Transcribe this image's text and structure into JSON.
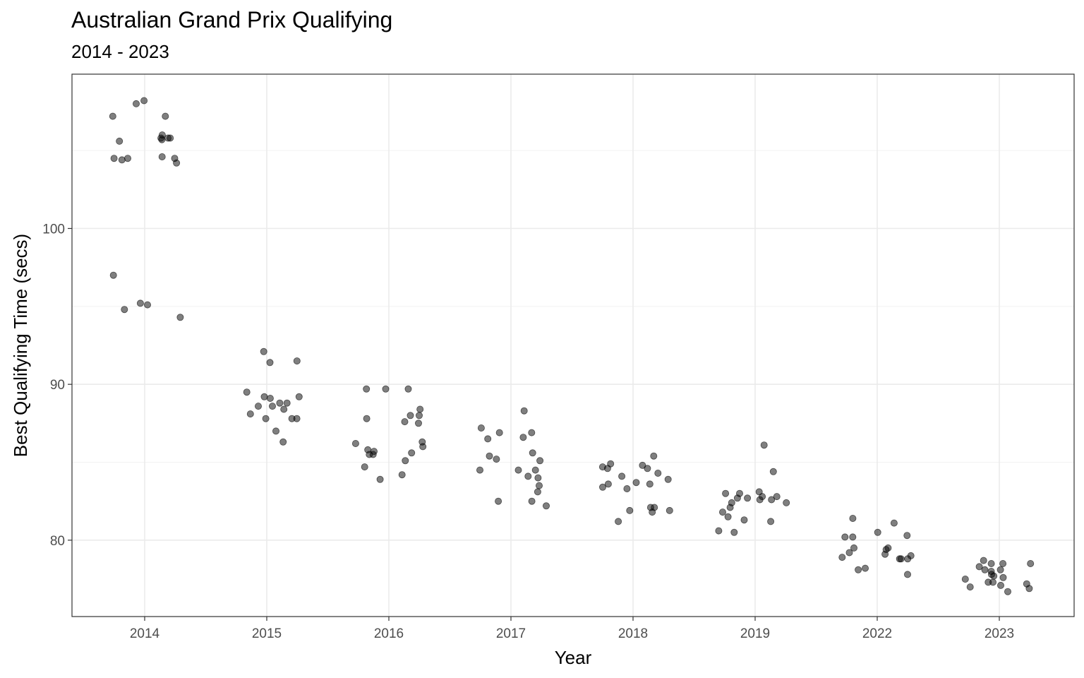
{
  "chart_data": {
    "type": "scatter",
    "title": "Australian Grand Prix Qualifying",
    "subtitle": "2014 - 2023",
    "xlabel": "Year",
    "ylabel": "Best Qualifying Time (secs)",
    "x_type": "categorical",
    "categories": [
      "2014",
      "2015",
      "2016",
      "2017",
      "2018",
      "2019",
      "2022",
      "2023"
    ],
    "yticks": [
      80,
      90,
      100
    ],
    "ylim": [
      75.1,
      109.9
    ],
    "grid": true,
    "point_color": "#000000",
    "point_opacity": 0.5,
    "jitter": "horizontal",
    "series": [
      {
        "category": "2014",
        "values": [
          106.0,
          105.8,
          105.6,
          107.2,
          108.2,
          104.5,
          104.5,
          104.2,
          104.5,
          105.8,
          108.0,
          107.2,
          104.4,
          105.7,
          104.6,
          105.8,
          97.0,
          94.3,
          95.1,
          94.8,
          95.2
        ]
      },
      {
        "category": "2015",
        "values": [
          92.1,
          88.6,
          88.4,
          89.1,
          88.6,
          88.8,
          87.8,
          86.3,
          91.5,
          91.4,
          87.8,
          87.8,
          89.2,
          88.1,
          87.0,
          89.5,
          88.8,
          89.2
        ]
      },
      {
        "category": "2016",
        "values": [
          88.0,
          88.0,
          89.7,
          85.6,
          85.1,
          87.8,
          85.5,
          87.5,
          85.8,
          89.7,
          83.9,
          89.7,
          84.2,
          86.2,
          87.6,
          85.5,
          85.7,
          86.3,
          86.0,
          88.4,
          84.7
        ]
      },
      {
        "category": "2017",
        "values": [
          84.5,
          84.5,
          85.6,
          88.3,
          85.2,
          85.4,
          85.1,
          82.5,
          84.1,
          86.9,
          86.6,
          82.2,
          84.0,
          84.5,
          86.5,
          87.2,
          82.5,
          86.9,
          83.1,
          83.5
        ]
      },
      {
        "category": "2018",
        "values": [
          83.3,
          83.6,
          84.6,
          84.3,
          84.7,
          81.9,
          81.9,
          84.8,
          82.1,
          84.6,
          81.8,
          83.4,
          83.7,
          83.9,
          85.4,
          82.1,
          81.2,
          84.1,
          83.6,
          84.9
        ]
      },
      {
        "category": "2019",
        "values": [
          80.5,
          83.0,
          84.4,
          82.7,
          81.5,
          82.6,
          82.4,
          82.8,
          81.3,
          82.7,
          80.6,
          82.1,
          82.6,
          81.2,
          83.1,
          82.8,
          82.4,
          86.1,
          83.0,
          81.8
        ]
      },
      {
        "category": "2022",
        "values": [
          77.8,
          78.9,
          81.1,
          80.5,
          78.1,
          79.1,
          78.8,
          79.2,
          80.3,
          79.0,
          78.8,
          80.2,
          79.4,
          79.5,
          80.2,
          78.2,
          81.4,
          79.5,
          78.8
        ]
      },
      {
        "category": "2023",
        "values": [
          76.9,
          77.1,
          78.0,
          77.0,
          77.6,
          78.1,
          78.3,
          78.5,
          78.7,
          77.2,
          77.3,
          78.1,
          77.8,
          77.7,
          78.5,
          78.5,
          76.7,
          77.3,
          77.5
        ]
      }
    ]
  }
}
